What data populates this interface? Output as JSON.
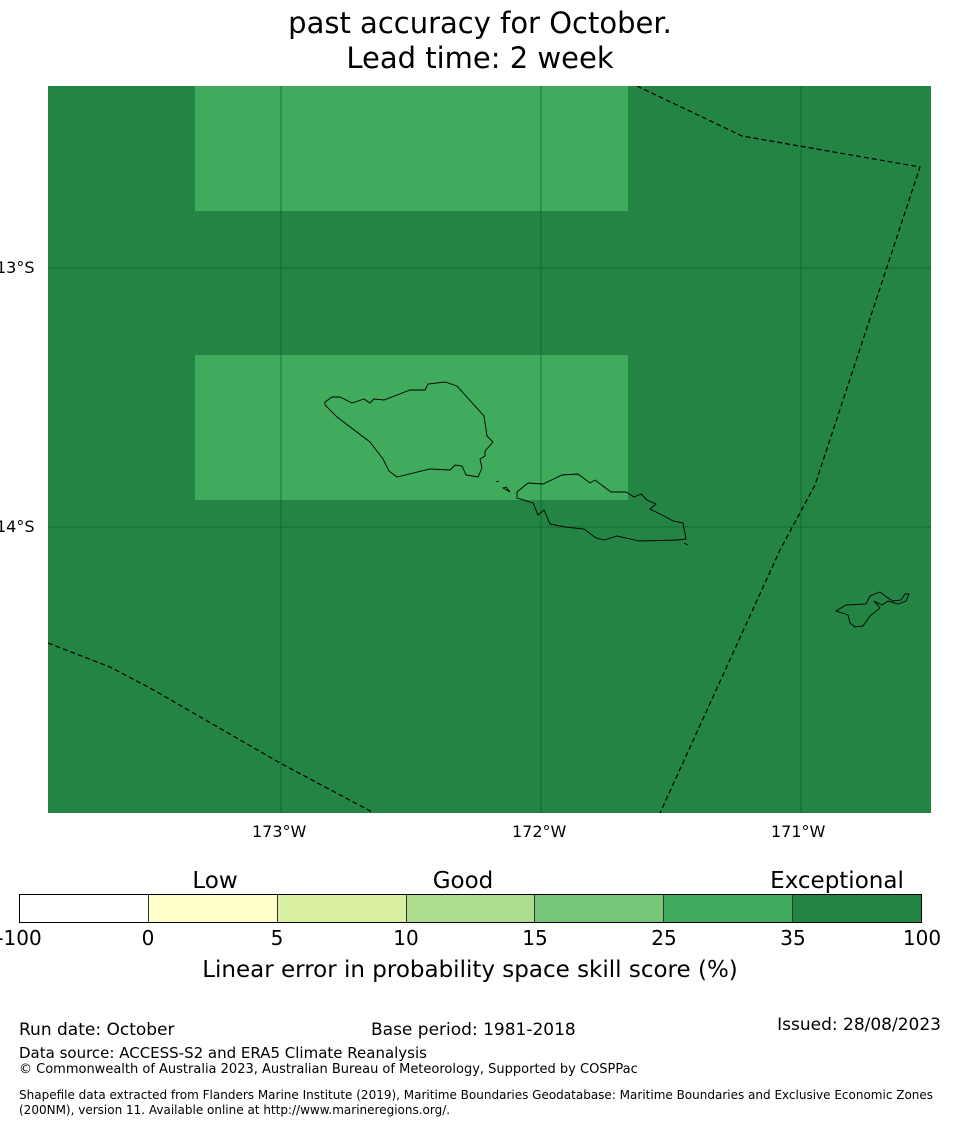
{
  "title": {
    "line2": "past accuracy for October.",
    "line3": "Lead time: 2 week"
  },
  "map": {
    "lat_labels": [
      "13°S",
      "14°S"
    ],
    "lon_labels": [
      "173°W",
      "172°W",
      "171°W"
    ],
    "colors": {
      "high": "#248443",
      "good": "#40aa5d"
    }
  },
  "legend": {
    "categories": [
      "Low",
      "Good",
      "Exceptional"
    ],
    "boundaries": [
      "-100",
      "0",
      "5",
      "10",
      "15",
      "25",
      "35",
      "100"
    ],
    "colors": [
      "#ffffff",
      "#ffffcc",
      "#d9f0a3",
      "#addd8e",
      "#78c679",
      "#41ab5d",
      "#238443"
    ],
    "label": "Linear error in probability space skill score (%)"
  },
  "footer": {
    "run_date": "Run date: October",
    "base_period": "Base period: 1981-2018",
    "issued": "Issued: 28/08/2023",
    "data_source": "Data source: ACCESS-S2 and ERA5 Climate Reanalysis",
    "copyright": "© Commonwealth of Australia 2023, Australian Bureau of Meteorology, Supported by COSPPac",
    "shapefile": "Shapefile data extracted from Flanders Marine Institute (2019), Maritime Boundaries Geodatabase: Maritime Boundaries and Exclusive Economic Zones (200NM), version 11. Available online at http://www.marineregions.org/."
  }
}
